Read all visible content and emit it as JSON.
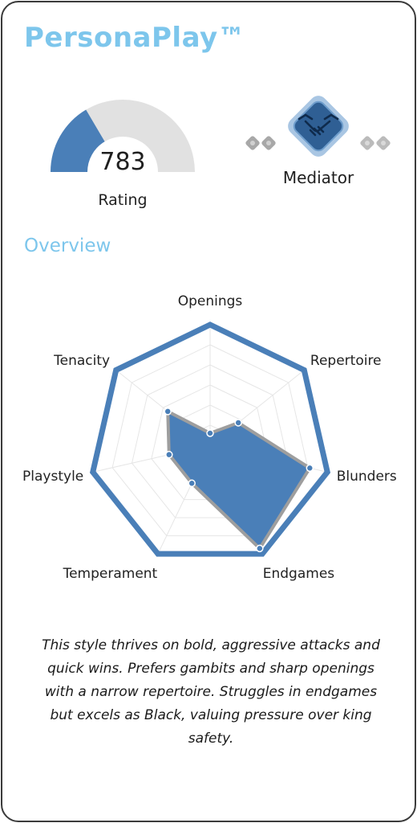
{
  "app": {
    "title": "PersonaPlay™"
  },
  "rating": {
    "value": "783",
    "label": "Rating",
    "fraction": 0.33
  },
  "persona": {
    "label": "Mediator",
    "icon": "handshake-icon"
  },
  "overview": {
    "title": "Overview",
    "description": "This style thrives on bold, aggressive attacks and quick wins. Prefers gambits and sharp openings with a narrow repertoire. Struggles in endgames but excels as Black, valuing pressure over king safety."
  },
  "chart_data": {
    "type": "radar",
    "axes": [
      "Openings",
      "Repertoire",
      "Blunders",
      "Endgames",
      "Temperament",
      "Playstyle",
      "Tenacity"
    ],
    "values": [
      0.1,
      0.3,
      0.85,
      0.95,
      0.35,
      0.35,
      0.45
    ],
    "range": [
      0,
      1
    ],
    "rings": 6
  },
  "colors": {
    "accent": "#4a7fb8",
    "title": "#7dc6ec",
    "gauge_track": "#e1e1e1",
    "data_outline": "#9e9e9e"
  }
}
